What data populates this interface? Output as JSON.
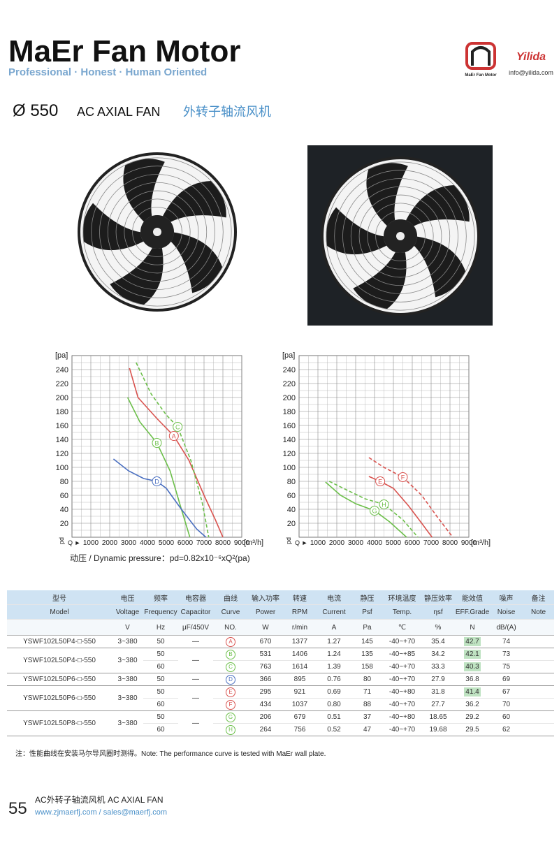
{
  "header": {
    "title": "MaEr Fan Motor",
    "tagline": "Professional · Honest · Human Oriented",
    "brand_caption": "MaEr Fan Motor",
    "logo": "Yilida",
    "email": "info@yilida.com"
  },
  "product": {
    "diameter": "Ø 550",
    "name_en": "AC AXIAL FAN",
    "name_zh": "外转子轴流风机"
  },
  "charts": [
    {
      "y_unit": "[pa]",
      "y_symbol": "pd",
      "x_symbol": "Q ►",
      "x_unit": "[m³/h]",
      "xlim": [
        0,
        9000
      ],
      "ylim": [
        0,
        260
      ],
      "minor_grid": true,
      "xticks": [
        1000,
        2000,
        3000,
        4000,
        5000,
        6000,
        7000,
        8000,
        9000
      ],
      "yticks": [
        20,
        40,
        60,
        80,
        100,
        120,
        140,
        160,
        180,
        200,
        220,
        240
      ],
      "curves": [
        {
          "label": "A",
          "color": "#d9534f",
          "dashed": false,
          "x": [
            3050,
            3500,
            4500,
            5400,
            6200,
            7000,
            7600,
            8000
          ],
          "y": [
            242,
            200,
            170,
            145,
            110,
            60,
            25,
            0
          ]
        },
        {
          "label": "B",
          "color": "#6cbf4a",
          "dashed": false,
          "x": [
            2950,
            3600,
            4500,
            5200,
            5800,
            6250
          ],
          "y": [
            200,
            165,
            135,
            95,
            40,
            0
          ]
        },
        {
          "label": "C",
          "color": "#6cbf4a",
          "dashed": true,
          "x": [
            3400,
            4200,
            5000,
            5600,
            6300,
            6900,
            7250
          ],
          "y": [
            250,
            205,
            175,
            158,
            110,
            50,
            0
          ]
        },
        {
          "label": "D",
          "color": "#4a6fc0",
          "dashed": false,
          "x": [
            2200,
            3000,
            3800,
            4500,
            5000,
            5800,
            6600,
            7100
          ],
          "y": [
            112,
            95,
            84,
            80,
            70,
            40,
            12,
            0
          ]
        }
      ]
    },
    {
      "y_unit": "[pa]",
      "y_symbol": "pd",
      "x_symbol": "Q ►",
      "x_unit": "[m³/h]",
      "xlim": [
        0,
        9000
      ],
      "ylim": [
        0,
        260
      ],
      "minor_grid": true,
      "xticks": [
        1000,
        2000,
        3000,
        4000,
        5000,
        6000,
        7000,
        8000,
        9000
      ],
      "yticks": [
        20,
        40,
        60,
        80,
        100,
        120,
        140,
        160,
        180,
        200,
        220,
        240
      ],
      "curves": [
        {
          "label": "E",
          "color": "#d9534f",
          "dashed": false,
          "x": [
            3700,
            4300,
            5000,
            5800,
            6500,
            7050
          ],
          "y": [
            87,
            80,
            70,
            45,
            20,
            0
          ]
        },
        {
          "label": "F",
          "color": "#d9534f",
          "dashed": true,
          "x": [
            3700,
            4500,
            5500,
            6500,
            7300,
            8150
          ],
          "y": [
            114,
            100,
            86,
            60,
            30,
            0
          ]
        },
        {
          "label": "G",
          "color": "#6cbf4a",
          "dashed": false,
          "x": [
            1400,
            2200,
            3000,
            4000,
            4800,
            5700
          ],
          "y": [
            79,
            60,
            48,
            38,
            22,
            0
          ]
        },
        {
          "label": "H",
          "color": "#6cbf4a",
          "dashed": true,
          "x": [
            1600,
            2500,
            3500,
            4500,
            5500,
            6300
          ],
          "y": [
            80,
            68,
            55,
            47,
            25,
            0
          ]
        }
      ]
    }
  ],
  "dynamic_pressure": "动压 / Dynamic pressure：pd=0.82x10⁻⁶xQ²(pa)",
  "table": {
    "header_zh": [
      "型号",
      "电压",
      "频率",
      "电容器",
      "曲线",
      "输入功率",
      "转速",
      "电流",
      "静压",
      "环境温度",
      "静压效率",
      "能效值",
      "噪声",
      "备注"
    ],
    "header_en": [
      "Model",
      "Voltage",
      "Frequency",
      "Capacitor",
      "Curve",
      "Power",
      "RPM",
      "Current",
      "Psf",
      "Temp.",
      "ηsf",
      "EFF.Grade",
      "Noise",
      "Note"
    ],
    "units": [
      "V",
      "Hz",
      "μF/450V",
      "NO.",
      "W",
      "r/min",
      "A",
      "Pa",
      "℃",
      "%",
      "N",
      "dB/(A)"
    ],
    "groups": [
      {
        "model": "YSWF102L50P4-□-550",
        "voltage": "3~380",
        "capacitor": "—",
        "rows": [
          {
            "hz": "50",
            "curve": "A",
            "power": "670",
            "rpm": "1377",
            "current": "1.27",
            "psf": "145",
            "temp": "-40~+70",
            "eff": "35.4",
            "grade": "42.7",
            "noise": "74",
            "highlight": true
          }
        ]
      },
      {
        "model": "YSWF102L50P4-□-550",
        "voltage": "3~380",
        "capacitor": "—",
        "rows": [
          {
            "hz": "50",
            "curve": "B",
            "power": "531",
            "rpm": "1406",
            "current": "1.24",
            "psf": "135",
            "temp": "-40~+85",
            "eff": "34.2",
            "grade": "42.1",
            "noise": "73",
            "highlight": true
          },
          {
            "hz": "60",
            "curve": "C",
            "power": "763",
            "rpm": "1614",
            "current": "1.39",
            "psf": "158",
            "temp": "-40~+70",
            "eff": "33.3",
            "grade": "40.3",
            "noise": "75",
            "highlight": true
          }
        ]
      },
      {
        "model": "YSWF102L50P6-□-550",
        "voltage": "3~380",
        "capacitor": "—",
        "rows": [
          {
            "hz": "50",
            "curve": "D",
            "power": "366",
            "rpm": "895",
            "current": "0.76",
            "psf": "80",
            "temp": "-40~+70",
            "eff": "27.9",
            "grade": "36.8",
            "noise": "69",
            "highlight": false
          }
        ]
      },
      {
        "model": "YSWF102L50P6-□-550",
        "voltage": "3~380",
        "capacitor": "—",
        "rows": [
          {
            "hz": "50",
            "curve": "E",
            "power": "295",
            "rpm": "921",
            "current": "0.69",
            "psf": "71",
            "temp": "-40~+80",
            "eff": "31.8",
            "grade": "41.4",
            "noise": "67",
            "highlight": true
          },
          {
            "hz": "60",
            "curve": "F",
            "power": "434",
            "rpm": "1037",
            "current": "0.80",
            "psf": "88",
            "temp": "-40~+70",
            "eff": "27.7",
            "grade": "36.2",
            "noise": "70",
            "highlight": false
          }
        ]
      },
      {
        "model": "YSWF102L50P8-□-550",
        "voltage": "3~380",
        "capacitor": "—",
        "rows": [
          {
            "hz": "50",
            "curve": "G",
            "power": "206",
            "rpm": "679",
            "current": "0.51",
            "psf": "37",
            "temp": "-40~+80",
            "eff": "18.65",
            "grade": "29.2",
            "noise": "60",
            "highlight": false
          },
          {
            "hz": "60",
            "curve": "H",
            "power": "264",
            "rpm": "756",
            "current": "0.52",
            "psf": "47",
            "temp": "-40~+70",
            "eff": "19.68",
            "grade": "29.5",
            "noise": "62",
            "highlight": false
          }
        ]
      }
    ]
  },
  "note": "注：性能曲线在安装马尔导风圈时测得。Note: The performance curve is tested with MaEr wall plate.",
  "footer": {
    "page": "55",
    "title": "AC外转子轴流风机  AC AXIAL FAN",
    "contact": "www.zjmaerfj.com  / sales@maerfj.com"
  }
}
